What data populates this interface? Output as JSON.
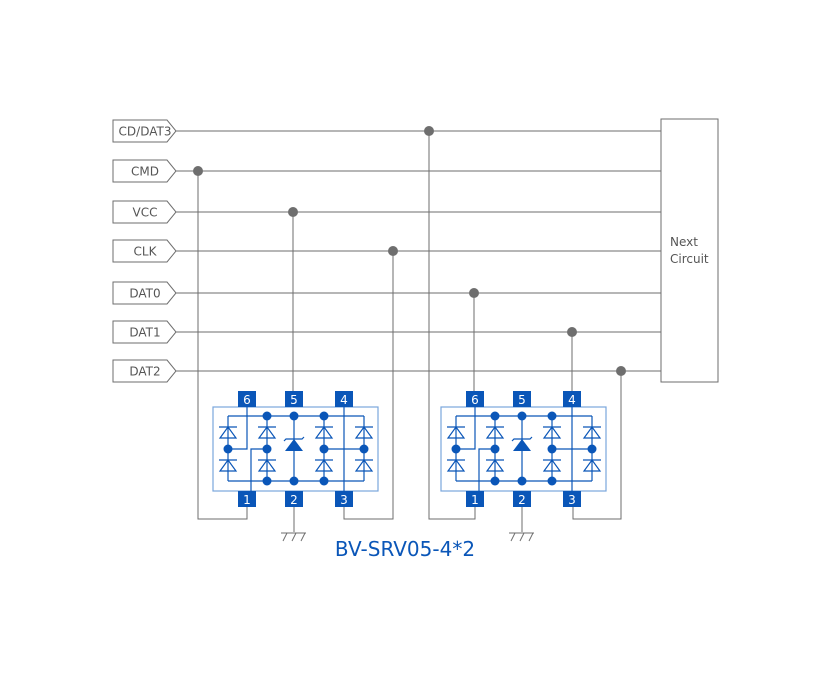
{
  "signals": [
    "CD/DAT3",
    "CMD",
    "VCC",
    "CLK",
    "DAT0",
    "DAT1",
    "DAT2"
  ],
  "next_circuit": {
    "line1": "Next",
    "line2": "Circuit"
  },
  "chips": [
    {
      "pins_top": [
        "6",
        "5",
        "4"
      ],
      "pins_bottom": [
        "1",
        "2",
        "3"
      ]
    },
    {
      "pins_top": [
        "6",
        "5",
        "4"
      ],
      "pins_bottom": [
        "1",
        "2",
        "3"
      ]
    }
  ],
  "part_label": "BV-SRV05-4*2",
  "colors": {
    "wire": "#6e6e6e",
    "chip": "#0a56b8",
    "chip_outline": "#7aa6dd",
    "text": "#555555"
  }
}
